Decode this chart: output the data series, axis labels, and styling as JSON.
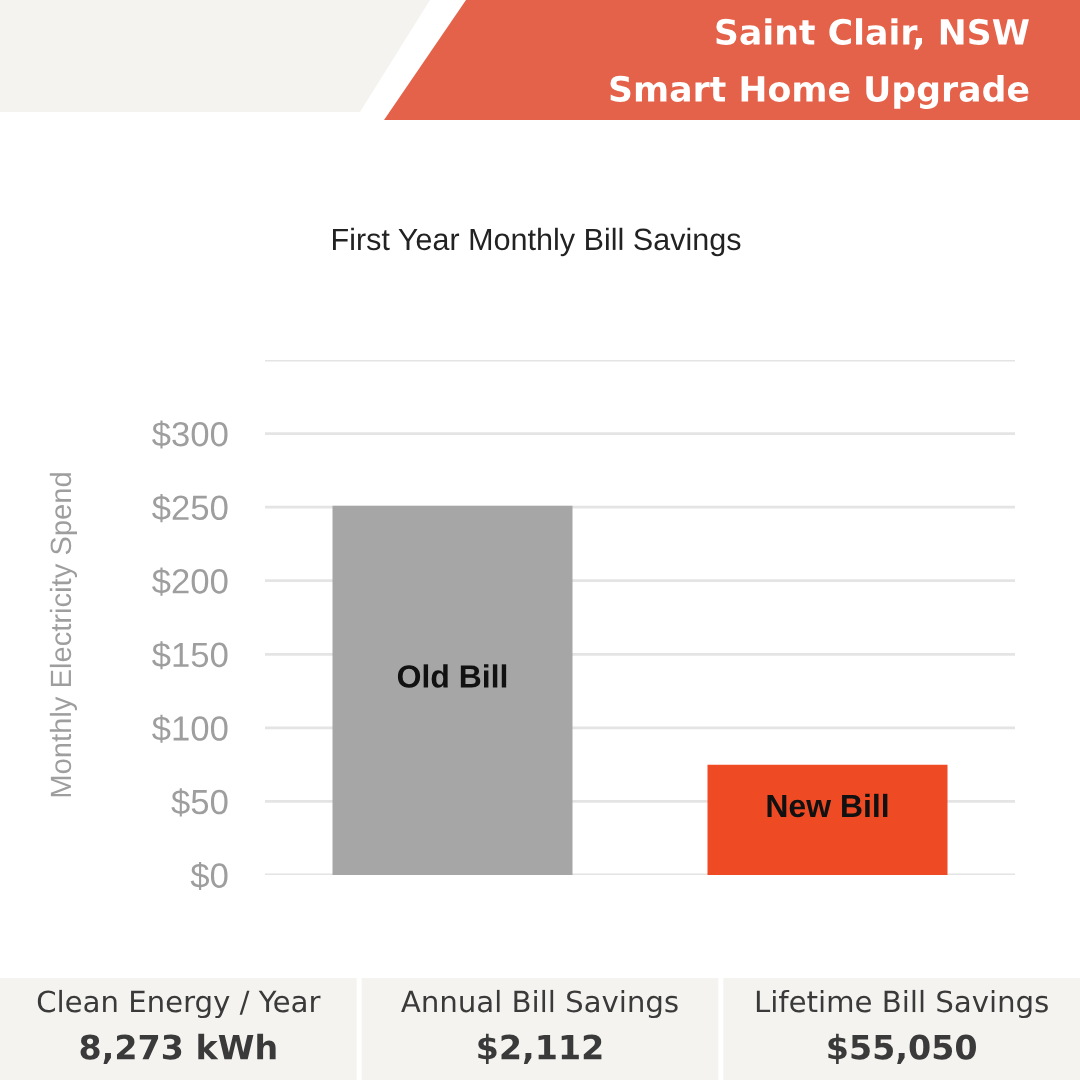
{
  "chart_data": {
    "type": "bar",
    "title": "First Year Monthly Bill Savings",
    "ylabel": "Monthly Electricity Spend",
    "categories": [
      "Old Bill",
      "New Bill"
    ],
    "values": [
      251,
      75
    ],
    "colors": [
      "#a6a6a6",
      "#ee4a24"
    ],
    "ylim": [
      0,
      350
    ],
    "yticks": [
      {
        "value": 0,
        "label": "$0"
      },
      {
        "value": 50,
        "label": "$50"
      },
      {
        "value": 100,
        "label": "$100"
      },
      {
        "value": 150,
        "label": "$150"
      },
      {
        "value": 200,
        "label": "$200"
      },
      {
        "value": 250,
        "label": "$250"
      },
      {
        "value": 300,
        "label": "$300"
      },
      {
        "value": 350,
        "label": null
      }
    ],
    "grid": "y",
    "annotations": [
      "Saint Clair, NSW",
      "Smart Home Upgrade",
      "Clean Energy / Year",
      "8,273 kWh",
      "Annual Bill Savings",
      "$2,112",
      "Lifetime Bill Savings",
      "$55,050"
    ]
  }
}
